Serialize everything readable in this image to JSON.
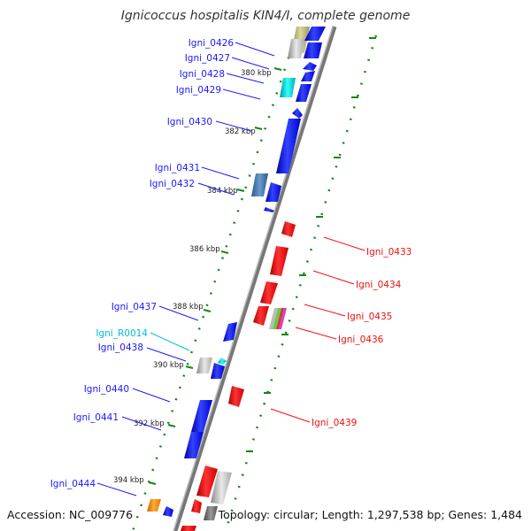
{
  "title": "Ignicoccus hospitalis KIN4/I, complete genome",
  "footer": {
    "accession": "Accession: NC_009776",
    "summary": "Topology: circular; Length: 1,297,538 bp; Genes: 1,484"
  },
  "colors": {
    "plus_strand": "#1a1aff",
    "minus_strand": "#ee1111",
    "rna": "#00bbdd",
    "backbone": "#888888",
    "scale": "#118811"
  },
  "ticks": [
    "380 kbp",
    "382 kbp",
    "384 kbp",
    "386 kbp",
    "388 kbp",
    "390 kbp",
    "392 kbp",
    "394 kbp"
  ],
  "genes_left": [
    {
      "name": "Igni_0426",
      "color": "blue"
    },
    {
      "name": "Igni_0427",
      "color": "blue"
    },
    {
      "name": "Igni_0428",
      "color": "blue"
    },
    {
      "name": "Igni_0429",
      "color": "blue"
    },
    {
      "name": "Igni_0430",
      "color": "blue"
    },
    {
      "name": "Igni_0431",
      "color": "blue"
    },
    {
      "name": "Igni_0432",
      "color": "blue"
    },
    {
      "name": "Igni_0437",
      "color": "blue"
    },
    {
      "name": "Igni_R0014",
      "color": "cyan"
    },
    {
      "name": "Igni_0438",
      "color": "blue"
    },
    {
      "name": "Igni_0440",
      "color": "blue"
    },
    {
      "name": "Igni_0441",
      "color": "blue"
    },
    {
      "name": "Igni_0444",
      "color": "blue"
    }
  ],
  "genes_right": [
    {
      "name": "Igni_0433"
    },
    {
      "name": "Igni_0434"
    },
    {
      "name": "Igni_0435"
    },
    {
      "name": "Igni_0436"
    },
    {
      "name": "Igni_0439"
    }
  ]
}
